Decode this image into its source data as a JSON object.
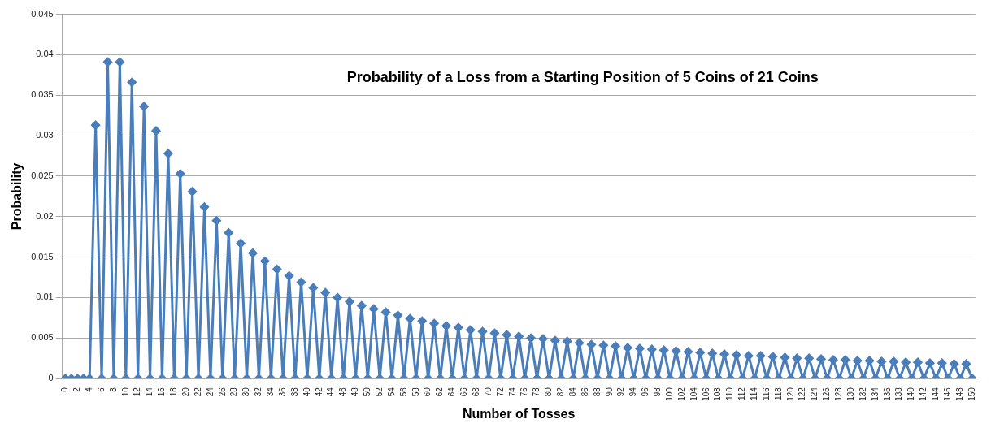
{
  "chart_data": {
    "type": "line",
    "title": "Probability of a Loss from a Starting Position of 5 Coins of 21 Coins",
    "xlabel": "Number of Tosses",
    "ylabel": "Probability",
    "categories": [
      "0",
      null,
      "2",
      null,
      "4",
      null,
      "6",
      null,
      "8",
      null,
      "10",
      null,
      "12",
      null,
      "14",
      null,
      "16",
      null,
      "18",
      null,
      "20",
      null,
      "22",
      null,
      "24",
      null,
      "26",
      null,
      "28",
      null,
      "30",
      null,
      "32",
      null,
      "34",
      null,
      "36",
      null,
      "38",
      null,
      "40",
      null,
      "42",
      null,
      "44",
      null,
      "46",
      null,
      "48",
      null,
      "50",
      null,
      "52",
      null,
      "54",
      null,
      "56",
      null,
      "58",
      null,
      "60",
      null,
      "62",
      null,
      "64",
      null,
      "66",
      null,
      "68",
      null,
      "70",
      null,
      "72",
      null,
      "74",
      null,
      "76",
      null,
      "78",
      null,
      "80",
      null,
      "82",
      null,
      "84",
      null,
      "86",
      null,
      "88",
      null,
      "90",
      null,
      "92",
      null,
      "94",
      null,
      "96",
      null,
      "98",
      null,
      "100",
      null,
      "102",
      null,
      "104",
      null,
      "106",
      null,
      "108",
      null,
      "110",
      null,
      "112",
      null,
      "114",
      null,
      "116",
      null,
      "118",
      null,
      "120",
      null,
      "122",
      null,
      "124",
      null,
      "126",
      null,
      "128",
      null,
      "130",
      null,
      "132",
      null,
      "134",
      null,
      "136",
      null,
      "138",
      null,
      "140",
      null,
      "142",
      null,
      "144",
      null,
      "146",
      null,
      "148",
      null,
      "150"
    ],
    "series": [
      {
        "color": "#4a7ebb",
        "values": [
          0,
          0,
          0,
          0,
          0,
          0.0313,
          0,
          0.0391,
          0,
          0.0391,
          0,
          0.0366,
          0,
          0.0336,
          0,
          0.0306,
          0,
          0.0278,
          0,
          0.0253,
          0,
          0.0231,
          0,
          0.0212,
          0,
          0.0195,
          0,
          0.018,
          0,
          0.0167,
          0,
          0.0155,
          0,
          0.0145,
          0,
          0.0135,
          0,
          0.0127,
          0,
          0.0119,
          0,
          0.0112,
          0,
          0.0106,
          0,
          0.01,
          0,
          0.0095,
          0,
          0.009,
          0,
          0.0086,
          0,
          0.0082,
          0,
          0.0078,
          0,
          0.0074,
          0,
          0.0071,
          0,
          0.0068,
          0,
          0.0065,
          0,
          0.0063,
          0,
          0.006,
          0,
          0.0058,
          0,
          0.0056,
          0,
          0.0054,
          0,
          0.0052,
          0,
          0.005,
          0,
          0.0049,
          0,
          0.0047,
          0,
          0.0046,
          0,
          0.0044,
          0,
          0.0042,
          0,
          0.0041,
          0,
          0.004,
          0,
          0.0038,
          0,
          0.0037,
          0,
          0.0036,
          0,
          0.0035,
          0,
          0.0034,
          0,
          0.0033,
          0,
          0.0032,
          0,
          0.0031,
          0,
          0.003,
          0,
          0.0029,
          0,
          0.0028,
          0,
          0.0028,
          0,
          0.0027,
          0,
          0.0026,
          0,
          0.0025,
          0,
          0.0025,
          0,
          0.0024,
          0,
          0.0023,
          0,
          0.0023,
          0,
          0.0022,
          0,
          0.0022,
          0,
          0.0021,
          0,
          0.0021,
          0,
          0.002,
          0,
          0.002,
          0,
          0.0019,
          0,
          0.0019,
          0,
          0.0018,
          0,
          0.0018,
          0
        ]
      }
    ],
    "ylim": [
      0,
      0.045
    ],
    "yticks": [
      0,
      0.005,
      0.01,
      0.015,
      0.02,
      0.025,
      0.03,
      0.035,
      0.04,
      0.045
    ],
    "grid": "y",
    "legend": false,
    "marker": "diamond",
    "line_style": "solid"
  }
}
